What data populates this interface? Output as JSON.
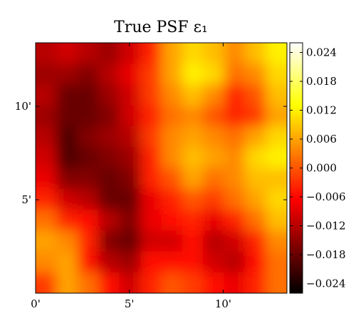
{
  "chart_data": {
    "type": "heatmap",
    "title": "True PSF ε₁",
    "colormap": "hot",
    "xlabel": "",
    "ylabel": "",
    "x_ticks": [
      "0'",
      "5'",
      "10'"
    ],
    "y_ticks": [
      "5'",
      "10'"
    ],
    "xlim_arcmin": [
      0,
      13.4
    ],
    "ylim_arcmin": [
      0,
      13.4
    ],
    "colorbar": {
      "range": [
        -0.026,
        0.026
      ],
      "ticks": [
        0.024,
        0.018,
        0.012,
        0.006,
        0.0,
        -0.006,
        -0.012,
        -0.018,
        -0.024
      ],
      "tick_labels": [
        "0.024",
        "0.018",
        "0.012",
        "0.006",
        "0.000",
        "−0.006",
        "−0.012",
        "−0.018",
        "−0.024"
      ]
    },
    "grid_rows": 12,
    "grid_cols": 12,
    "row_order": "top-to-bottom",
    "values": [
      [
        -0.012,
        -0.01,
        -0.012,
        -0.014,
        -0.01,
        -0.004,
        0.006,
        0.01,
        0.008,
        0.004,
        0.008,
        0.012
      ],
      [
        -0.014,
        -0.014,
        -0.016,
        -0.012,
        -0.008,
        -0.002,
        0.006,
        0.012,
        0.01,
        0.002,
        0.004,
        0.01
      ],
      [
        -0.012,
        -0.018,
        -0.018,
        -0.014,
        -0.01,
        -0.002,
        0.004,
        0.008,
        0.004,
        -0.004,
        0.0,
        0.008
      ],
      [
        -0.014,
        -0.018,
        -0.018,
        -0.016,
        -0.01,
        -0.004,
        0.002,
        0.004,
        0.0,
        -0.004,
        -0.002,
        0.006
      ],
      [
        -0.012,
        -0.02,
        -0.016,
        -0.014,
        -0.012,
        -0.002,
        0.004,
        0.006,
        0.004,
        0.002,
        0.006,
        0.01
      ],
      [
        -0.01,
        -0.02,
        -0.018,
        -0.016,
        -0.014,
        -0.004,
        0.004,
        0.008,
        0.006,
        0.004,
        0.01,
        0.012
      ],
      [
        -0.008,
        -0.016,
        -0.016,
        -0.018,
        -0.016,
        -0.004,
        0.0,
        0.006,
        0.002,
        0.004,
        0.008,
        0.008
      ],
      [
        -0.004,
        -0.01,
        -0.012,
        -0.018,
        -0.018,
        -0.008,
        -0.004,
        0.0,
        -0.002,
        0.002,
        0.006,
        0.01
      ],
      [
        0.002,
        -0.004,
        -0.006,
        -0.012,
        -0.016,
        -0.008,
        -0.006,
        -0.004,
        -0.008,
        -0.004,
        0.002,
        0.008
      ],
      [
        0.006,
        0.004,
        -0.004,
        -0.016,
        -0.018,
        -0.01,
        -0.01,
        -0.006,
        -0.012,
        -0.01,
        -0.004,
        0.004
      ],
      [
        0.004,
        0.006,
        -0.006,
        -0.012,
        -0.014,
        -0.006,
        -0.006,
        -0.006,
        -0.01,
        -0.012,
        -0.006,
        0.002
      ],
      [
        -0.002,
        0.006,
        0.002,
        -0.006,
        -0.01,
        -0.004,
        0.0,
        -0.002,
        -0.006,
        -0.008,
        -0.004,
        0.002
      ]
    ]
  }
}
